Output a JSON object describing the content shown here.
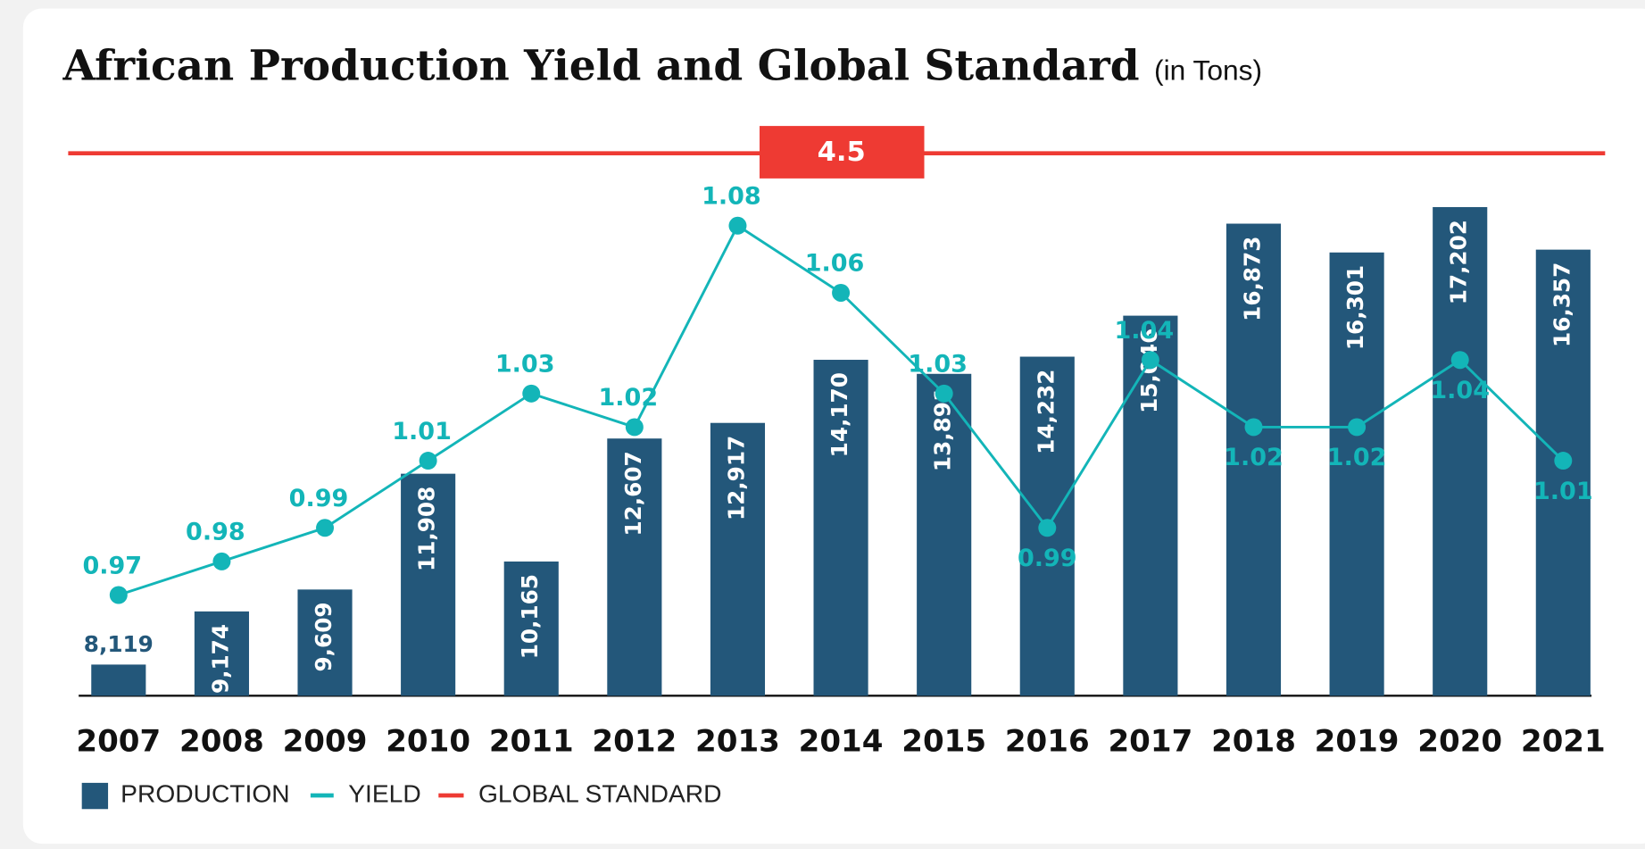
{
  "chart_data": {
    "type": "bar",
    "title": "African Production Yield and Global Standard",
    "subtitle": "(in Tons)",
    "categories": [
      "2007",
      "2008",
      "2009",
      "2010",
      "2011",
      "2012",
      "2013",
      "2014",
      "2015",
      "2016",
      "2017",
      "2018",
      "2019",
      "2020",
      "2021"
    ],
    "series": [
      {
        "name": "PRODUCTION",
        "type": "bar",
        "color": "#23577a",
        "values": [
          8119,
          9174,
          9609,
          11908,
          10165,
          12607,
          12917,
          14170,
          13891,
          14232,
          15046,
          16873,
          16301,
          17202,
          16357
        ],
        "value_labels": [
          "8,119",
          "9,174",
          "9,609",
          "11,908",
          "10,165",
          "12,607",
          "12,917",
          "14,170",
          "13,891",
          "14,232",
          "15,046",
          "16,873",
          "16,301",
          "17,202",
          "16,357"
        ]
      },
      {
        "name": "YIELD",
        "type": "line",
        "axis": "y2",
        "color": "#13b5b8",
        "values": [
          0.97,
          0.98,
          0.99,
          1.01,
          1.03,
          1.02,
          1.08,
          1.06,
          1.03,
          0.99,
          1.04,
          1.02,
          1.02,
          1.04,
          1.01
        ]
      }
    ],
    "global_standard": {
      "name": "GLOBAL STANDARD",
      "value": 4.5,
      "color": "#ee3a33"
    },
    "ylim": [
      7500,
      17500
    ],
    "y2lim": [
      0.94,
      1.09
    ]
  }
}
